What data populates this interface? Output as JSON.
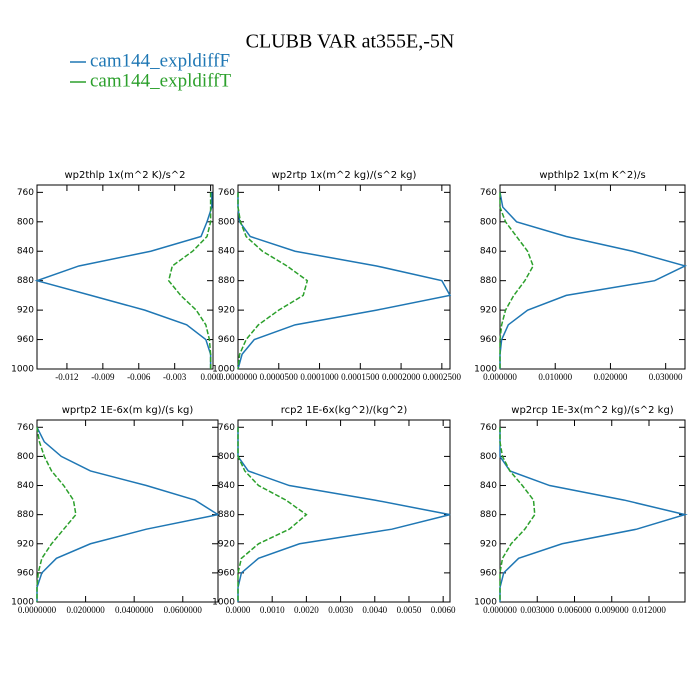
{
  "title": "CLUBB VAR at355E,-5N",
  "legend": [
    {
      "name": "cam144_expldiffF",
      "color": "#1f77b4"
    },
    {
      "name": "cam144_expldiffT",
      "color": "#2ca02c"
    }
  ],
  "chart_data": [
    {
      "type": "line",
      "title": "wp2thlp  1x(m^2 K)/s^2",
      "y": [
        760,
        780,
        800,
        820,
        840,
        860,
        880,
        900,
        920,
        940,
        960,
        980,
        1000
      ],
      "ylim": [
        1000,
        750
      ],
      "yticks": [
        760,
        800,
        840,
        880,
        920,
        960,
        1000
      ],
      "xlim": [
        -0.0145,
        0.0002
      ],
      "xticks": [
        -0.012,
        -0.009,
        -0.006,
        -0.003,
        {
          "value": 0,
          "label": "0.000"
        }
      ],
      "series": [
        {
          "values": [
            0.0001,
            0.0001,
            -0.0003,
            -0.0008,
            -0.005,
            -0.011,
            -0.0145,
            -0.01,
            -0.0055,
            -0.002,
            -0.0004,
            0,
            0
          ]
        },
        {
          "values": [
            0,
            0,
            0,
            -0.0003,
            -0.0015,
            -0.0032,
            -0.0035,
            -0.0025,
            -0.0012,
            -0.0004,
            -0.0001,
            0,
            0
          ]
        }
      ]
    },
    {
      "type": "line",
      "title": "wp2rtp  1x(m^2 kg)/(s^2 kg)",
      "y": [
        760,
        780,
        800,
        820,
        840,
        860,
        880,
        900,
        920,
        940,
        960,
        980,
        1000
      ],
      "ylim": [
        1000,
        750
      ],
      "yticks": [
        760,
        800,
        840,
        880,
        920,
        960,
        1000
      ],
      "xlim": [
        0,
        0.00026
      ],
      "xticks": [
        {
          "value": 0,
          "label": "0.0000000"
        },
        {
          "value": 5e-05,
          "label": "0.0000500"
        },
        {
          "value": 0.0001,
          "label": "0.0001000"
        },
        {
          "value": 0.00015,
          "label": "0.0001500"
        },
        {
          "value": 0.0002,
          "label": "0.0002000"
        },
        {
          "value": 0.00025,
          "label": "0.0002500"
        }
      ],
      "series": [
        {
          "values": [
            0,
            0,
            2e-06,
            1.5e-05,
            7e-05,
            0.00017,
            0.00025,
            0.00026,
            0.00017,
            7e-05,
            2e-05,
            5e-06,
            0
          ]
        },
        {
          "values": [
            0,
            0,
            3e-06,
            1e-05,
            3e-05,
            6e-05,
            8.5e-05,
            8e-05,
            5e-05,
            2.5e-05,
            1e-05,
            2e-06,
            0
          ]
        }
      ]
    },
    {
      "type": "line",
      "title": "wpthlp2  1x(m K^2)/s",
      "y": [
        760,
        780,
        800,
        820,
        840,
        860,
        880,
        900,
        920,
        940,
        960,
        980,
        1000
      ],
      "ylim": [
        1000,
        750
      ],
      "yticks": [
        760,
        800,
        840,
        880,
        920,
        960,
        1000
      ],
      "xlim": [
        0,
        0.0335
      ],
      "xticks": [
        {
          "value": 0,
          "label": "0.000000"
        },
        {
          "value": 0.01,
          "label": "0.010000"
        },
        {
          "value": 0.02,
          "label": "0.020000"
        },
        {
          "value": 0.03,
          "label": "0.030000"
        }
      ],
      "series": [
        {
          "values": [
            0,
            0.0005,
            0.003,
            0.012,
            0.024,
            0.0335,
            0.028,
            0.012,
            0.005,
            0.0015,
            0.0003,
            0,
            0
          ]
        },
        {
          "values": [
            0,
            0,
            0.001,
            0.003,
            0.005,
            0.006,
            0.0045,
            0.0025,
            0.001,
            0.0003,
            0,
            0,
            0
          ]
        }
      ]
    },
    {
      "type": "line",
      "title": "wprtp2  1E-6x(m kg)/(s kg)",
      "y": [
        760,
        780,
        800,
        820,
        840,
        860,
        880,
        900,
        920,
        940,
        960,
        980,
        1000
      ],
      "ylim": [
        1000,
        750
      ],
      "yticks": [
        760,
        800,
        840,
        880,
        920,
        960,
        1000
      ],
      "xlim": [
        0,
        0.0745
      ],
      "xticks": [
        {
          "value": 0,
          "label": "0.0000000"
        },
        {
          "value": 0.02,
          "label": "0.0200000"
        },
        {
          "value": 0.04,
          "label": "0.0400000"
        },
        {
          "value": 0.06,
          "label": "0.0600000"
        }
      ],
      "series": [
        {
          "values": [
            0,
            0.003,
            0.01,
            0.022,
            0.045,
            0.065,
            0.0745,
            0.045,
            0.022,
            0.008,
            0.002,
            0,
            0
          ]
        },
        {
          "values": [
            0,
            0.001,
            0.003,
            0.006,
            0.011,
            0.015,
            0.016,
            0.011,
            0.006,
            0.002,
            0.0005,
            0,
            0
          ]
        }
      ]
    },
    {
      "type": "line",
      "title": "rcp2  1E-6x(kg^2)/(kg^2)",
      "y": [
        760,
        780,
        800,
        820,
        840,
        860,
        880,
        900,
        920,
        940,
        960,
        980,
        1000
      ],
      "ylim": [
        1000,
        750
      ],
      "yticks": [
        760,
        800,
        840,
        880,
        920,
        960,
        1000
      ],
      "xlim": [
        0,
        0.0062
      ],
      "xticks": [
        {
          "value": 0,
          "label": "0.0000"
        },
        {
          "value": 0.001,
          "label": "0.0010"
        },
        {
          "value": 0.002,
          "label": "0.0020"
        },
        {
          "value": 0.003,
          "label": "0.0030"
        },
        {
          "value": 0.004,
          "label": "0.0040"
        },
        {
          "value": 0.005,
          "label": "0.0050"
        },
        {
          "value": 0.006,
          "label": "0.0060"
        }
      ],
      "series": [
        {
          "values": [
            0,
            0,
            0,
            0.0003,
            0.0015,
            0.004,
            0.0062,
            0.0045,
            0.0018,
            0.0006,
            0.0001,
            0,
            0
          ]
        },
        {
          "values": [
            0,
            0,
            0,
            0.0002,
            0.0006,
            0.0014,
            0.002,
            0.0015,
            0.0006,
            0.0001,
            0,
            0,
            0
          ]
        }
      ]
    },
    {
      "type": "line",
      "title": "wp2rcp  1E-3x(m^2 kg)/(s^2 kg)",
      "y": [
        760,
        780,
        800,
        820,
        840,
        860,
        880,
        900,
        920,
        940,
        960,
        980,
        1000
      ],
      "ylim": [
        1000,
        750
      ],
      "yticks": [
        760,
        800,
        840,
        880,
        920,
        960,
        1000
      ],
      "xlim": [
        0,
        0.0149
      ],
      "xticks": [
        {
          "value": 0,
          "label": "0.000000"
        },
        {
          "value": 0.003,
          "label": "0.003000"
        },
        {
          "value": 0.006,
          "label": "0.006000"
        },
        {
          "value": 0.009,
          "label": "0.009000"
        },
        {
          "value": 0.012,
          "label": "0.012000"
        }
      ],
      "series": [
        {
          "values": [
            0,
            0,
            0,
            0.0008,
            0.004,
            0.01,
            0.0149,
            0.011,
            0.005,
            0.0015,
            0.0003,
            0,
            0
          ]
        },
        {
          "values": [
            0,
            0,
            0.0002,
            0.0008,
            0.0018,
            0.0027,
            0.0028,
            0.002,
            0.0009,
            0.0002,
            0,
            0,
            0
          ]
        }
      ]
    }
  ]
}
